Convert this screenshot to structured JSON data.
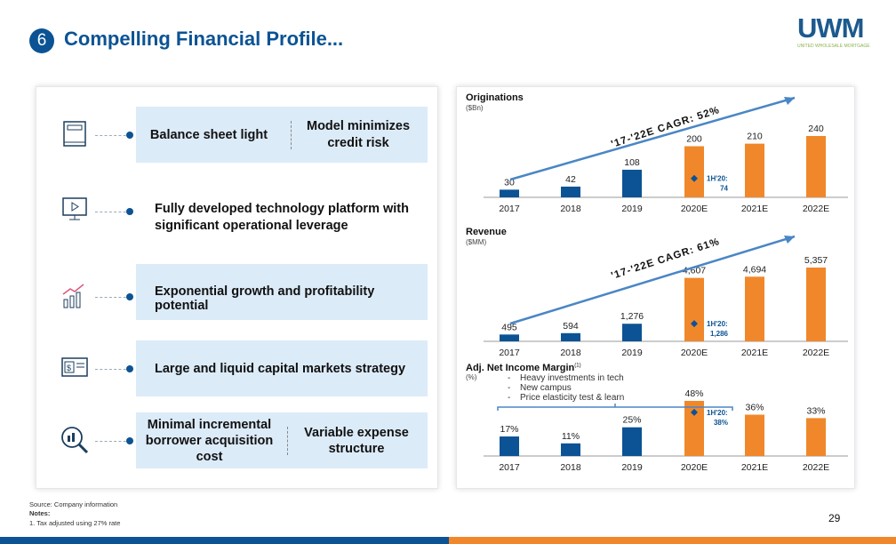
{
  "header": {
    "number": "6",
    "title": "Compelling Financial Profile...",
    "logo_text": "UWM",
    "logo_sub": "UNITED WHOLESALE MORTGAGE"
  },
  "left": {
    "rows": [
      {
        "icon": "book-icon",
        "label": "Balance sheet light",
        "label2": "Model minimizes credit risk"
      },
      {
        "icon": "monitor-play-icon",
        "label": "Fully developed technology platform with significant operational leverage"
      },
      {
        "icon": "growth-chart-icon",
        "label": "Exponential growth and profitability potential"
      },
      {
        "icon": "cash-icon",
        "label": "Large and liquid capital markets strategy"
      },
      {
        "icon": "magnifier-chart-icon",
        "label": "Minimal incremental borrower acquisition cost",
        "label2": "Variable expense structure"
      }
    ]
  },
  "colors": {
    "actual": "#0b5394",
    "estimate": "#f0882b",
    "box": "#dcebf8"
  },
  "chart_data": [
    {
      "type": "bar",
      "title": "Originations",
      "unit": "($Bn)",
      "categories": [
        "2017",
        "2018",
        "2019",
        "2020E",
        "2021E",
        "2022E"
      ],
      "values": [
        30,
        42,
        108,
        200,
        210,
        240
      ],
      "labels": [
        "30",
        "42",
        "108",
        "200",
        "210",
        "240"
      ],
      "cagr": "'17-'22E CAGR: 52%",
      "h1_label": "1H'20:",
      "h1_value": "74",
      "h1": 74
    },
    {
      "type": "bar",
      "title": "Revenue",
      "unit": "($MM)",
      "categories": [
        "2017",
        "2018",
        "2019",
        "2020E",
        "2021E",
        "2022E"
      ],
      "values": [
        495,
        594,
        1276,
        4607,
        4694,
        5357
      ],
      "labels": [
        "495",
        "594",
        "1,276",
        "4,607",
        "4,694",
        "5,357"
      ],
      "cagr": "'17-'22E CAGR: 61%",
      "h1_label": "1H'20:",
      "h1_value": "1,286",
      "h1": 1286
    },
    {
      "type": "bar",
      "title": "Adj. Net Income Margin",
      "footnote_ref": "(1)",
      "unit": "(%)",
      "categories": [
        "2017",
        "2018",
        "2019",
        "2020E",
        "2021E",
        "2022E"
      ],
      "values": [
        17,
        11,
        25,
        48,
        36,
        33
      ],
      "labels": [
        "17%",
        "11%",
        "25%",
        "48%",
        "36%",
        "33%"
      ],
      "h1_label": "1H'20:",
      "h1_value": "38%",
      "h1": 38,
      "notes": [
        "Heavy investments in tech",
        "New campus",
        "Price elasticity test & learn"
      ]
    }
  ],
  "footer": {
    "source": "Source: Company information",
    "notes_label": "Notes:",
    "note1": "1. Tax adjusted using 27% rate",
    "page": "29"
  }
}
